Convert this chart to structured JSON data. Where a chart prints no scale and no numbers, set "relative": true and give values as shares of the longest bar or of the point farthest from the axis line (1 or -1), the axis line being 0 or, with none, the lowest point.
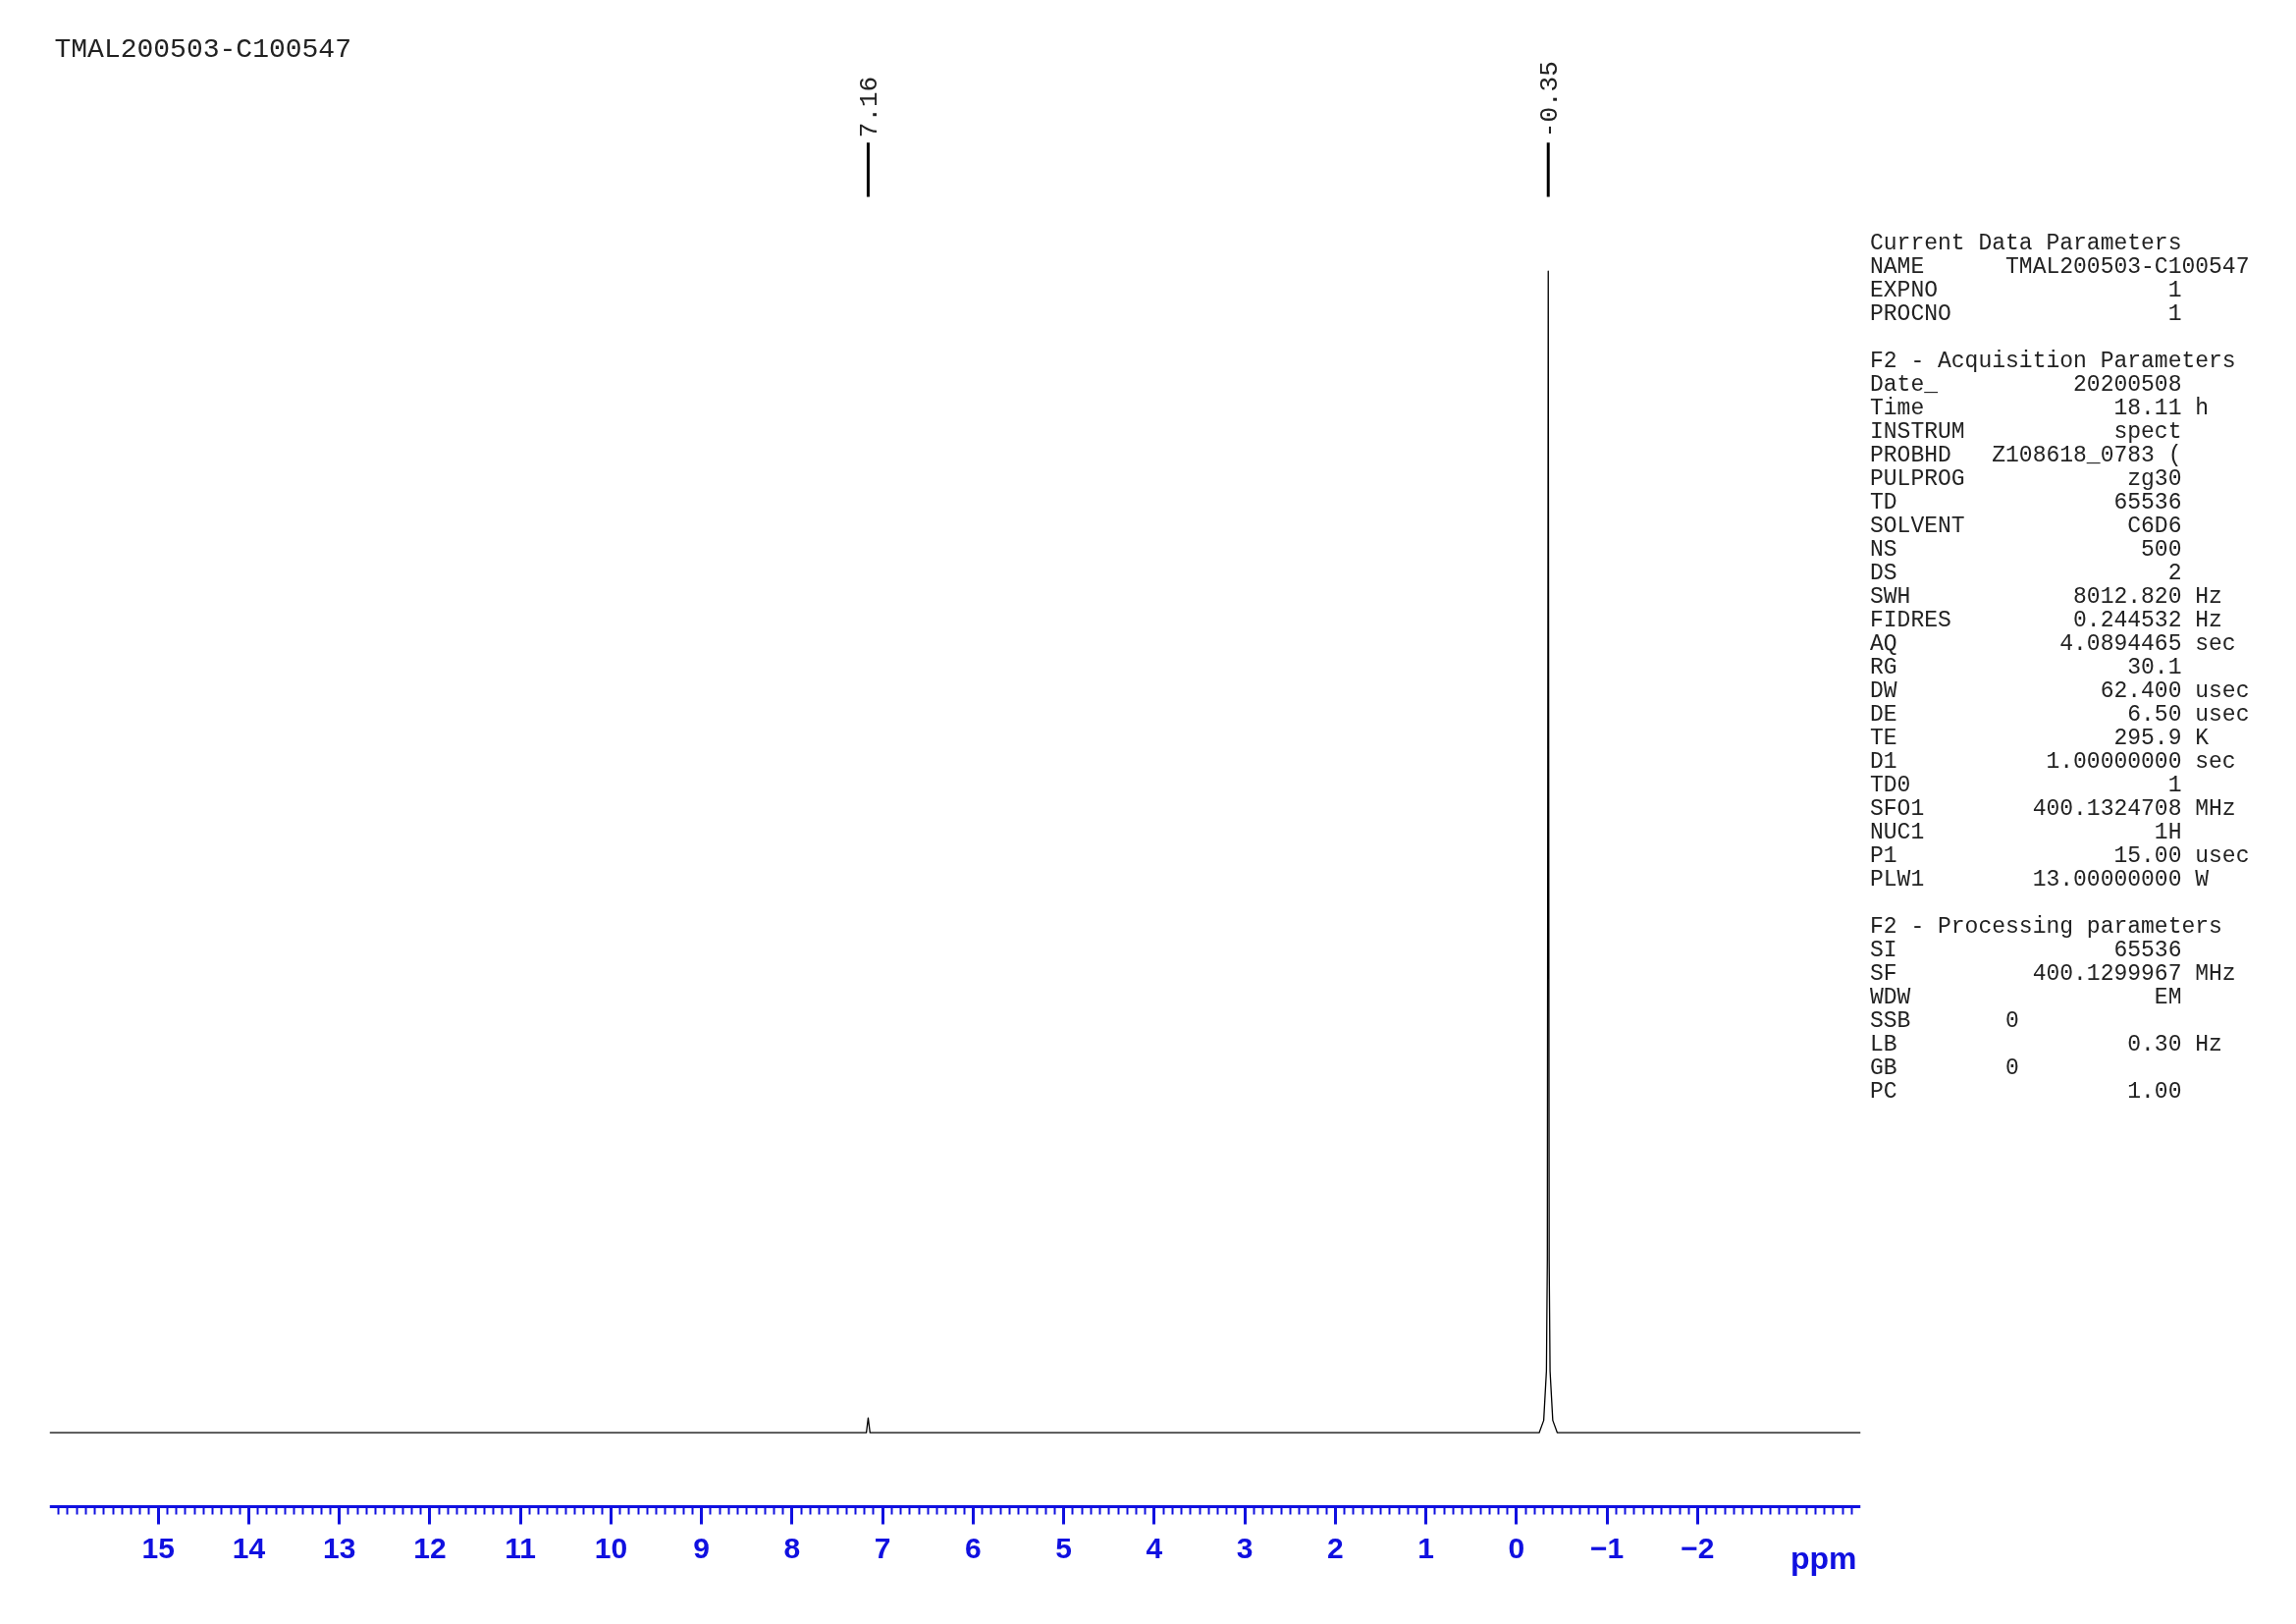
{
  "chart_data": {
    "type": "line",
    "relative": true,
    "title": "TMAL200503-C100547",
    "xlabel": "ppm",
    "xlim": [
      16.2,
      -3.8
    ],
    "xticks": [
      15,
      14,
      13,
      12,
      11,
      10,
      9,
      8,
      7,
      6,
      5,
      4,
      3,
      2,
      1,
      0,
      -1,
      -2
    ],
    "x": [
      16.2,
      7.18,
      7.16,
      7.14,
      -0.25,
      -0.3,
      -0.33,
      -0.34,
      -0.35,
      -0.36,
      -0.37,
      -0.4,
      -0.45,
      -3.8
    ],
    "series": [
      {
        "color": "#000000",
        "values": [
          0.06,
          0.06,
          0.072,
          0.06,
          0.06,
          0.07,
          0.11,
          0.2,
          1,
          0.2,
          0.11,
          0.07,
          0.06,
          0.06
        ]
      }
    ],
    "annotations": [
      {
        "text": "7.16",
        "x": 7.16
      },
      {
        "text": "-0.35",
        "x": -0.35
      },
      "Current Data Parameters\nNAME      TMAL200503-C100547\nEXPNO                 1\nPROCNO                1",
      "F2 - Acquisition Parameters\nDate_          20200508\nTime              18.11 h\nINSTRUM           spect\nPROBHD   Z108618_0783 (\nPULPROG            zg30\nTD                65536\nSOLVENT            C6D6\nNS                  500\nDS                    2\nSWH            8012.820 Hz\nFIDRES         0.244532 Hz\nAQ            4.0894465 sec\nRG                 30.1\nDW               62.400 usec\nDE                 6.50 usec\nTE                295.9 K\nD1           1.00000000 sec\nTD0                   1\nSFO1        400.1324708 MHz\nNUC1                 1H\nP1                15.00 usec\nPLW1        13.00000000 W",
      "F2 - Processing parameters\nSI                65536\nSF          400.1299967 MHz\nWDW                  EM\nSSB       0\nLB                 0.30 Hz\nGB        0\nPC                 1.00"
    ]
  }
}
